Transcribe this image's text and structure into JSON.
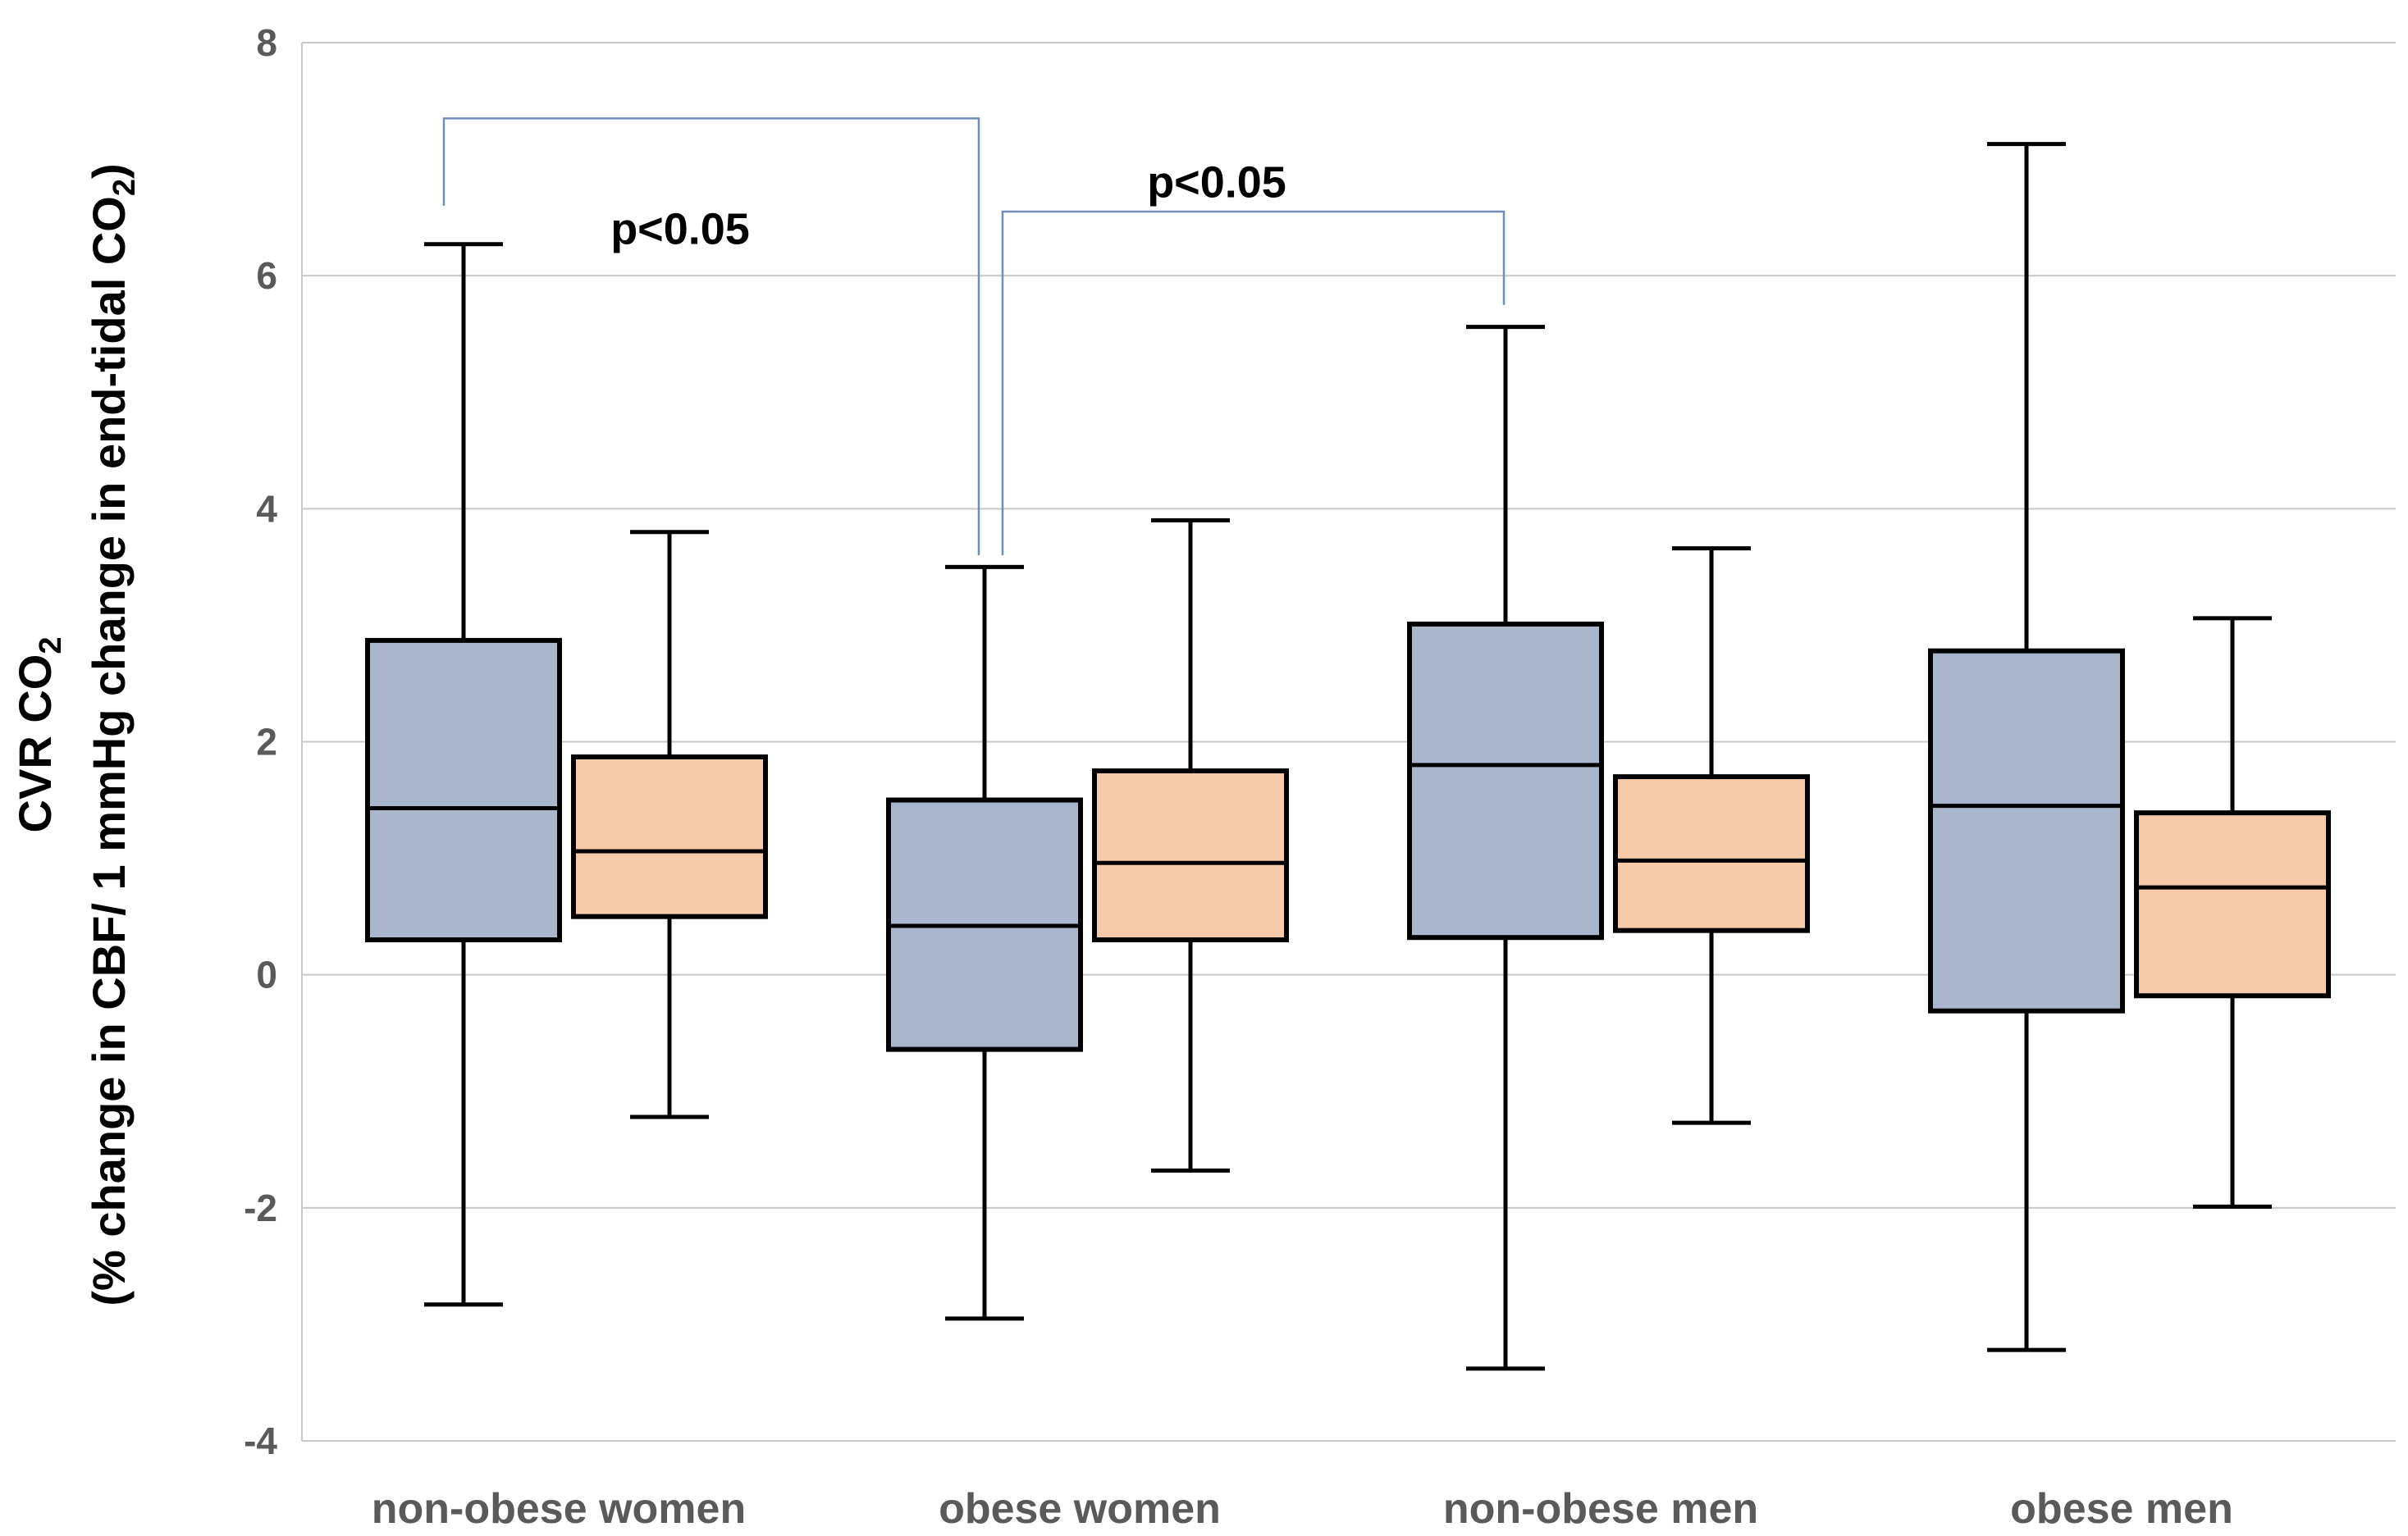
{
  "chart_data": {
    "type": "boxplot",
    "ylabel_line1": "CVR CO",
    "ylabel_line1_sub": "2",
    "ylabel_line2": "(% change in CBF/ 1 mmHg change in end-tidal CO",
    "ylabel_line2_sub": "2",
    "ylabel_line2_end": ")",
    "ylim": [
      -4,
      8
    ],
    "yticks": [
      -4,
      -2,
      0,
      2,
      4,
      6,
      8
    ],
    "grid": true,
    "categories": [
      "non-obese women",
      "obese women",
      "non-obese men",
      "obese men"
    ],
    "series_colors": [
      "#aab6cb",
      "#f7cba9"
    ],
    "boxes": [
      {
        "category": 0,
        "series": 0,
        "min": -2.83,
        "q1": 0.3,
        "median": 1.43,
        "q3": 2.87,
        "max": 6.27
      },
      {
        "category": 0,
        "series": 1,
        "min": -1.22,
        "q1": 0.5,
        "median": 1.06,
        "q3": 1.87,
        "max": 3.8
      },
      {
        "category": 1,
        "series": 0,
        "min": -2.95,
        "q1": -0.64,
        "median": 0.42,
        "q3": 1.5,
        "max": 3.5
      },
      {
        "category": 1,
        "series": 1,
        "min": -1.68,
        "q1": 0.3,
        "median": 0.96,
        "q3": 1.75,
        "max": 3.9
      },
      {
        "category": 2,
        "series": 0,
        "min": -3.38,
        "q1": 0.32,
        "median": 1.8,
        "q3": 3.01,
        "max": 5.56
      },
      {
        "category": 2,
        "series": 1,
        "min": -1.27,
        "q1": 0.38,
        "median": 0.98,
        "q3": 1.7,
        "max": 3.66
      },
      {
        "category": 3,
        "series": 0,
        "min": -3.22,
        "q1": -0.31,
        "median": 1.45,
        "q3": 2.78,
        "max": 7.13
      },
      {
        "category": 3,
        "series": 1,
        "min": -1.99,
        "q1": -0.18,
        "median": 0.75,
        "q3": 1.39,
        "max": 3.06
      }
    ],
    "annotations": [
      {
        "text": "p<0.05",
        "from_category": 0,
        "to_category": 1,
        "bracket_top": 7.35,
        "left_end": 6.6,
        "right_end": 3.6,
        "label_value": 6.4
      },
      {
        "text": "p<0.05",
        "from_category": 1,
        "to_category": 2,
        "bracket_top": 6.55,
        "left_end": 3.6,
        "right_end": 5.75,
        "label_value": 6.8
      }
    ]
  }
}
